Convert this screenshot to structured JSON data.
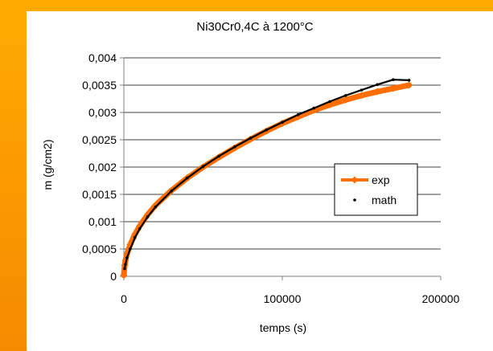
{
  "colors": {
    "frame": "#ff9f00",
    "exp": "#ff6e00",
    "math": "#000000",
    "axis": "#808080"
  },
  "chart_data": {
    "type": "line",
    "title": "Ni30Cr0,4C à 1200°C",
    "xlabel": "temps (s)",
    "ylabel": "m (g/cm2)",
    "xlim": [
      0,
      200000
    ],
    "ylim": [
      0,
      0.004
    ],
    "x_ticks": [
      0,
      100000,
      200000
    ],
    "x_tick_labels": [
      "0",
      "100000",
      "200000"
    ],
    "y_ticks": [
      0,
      0.0005,
      0.001,
      0.0015,
      0.002,
      0.0025,
      0.003,
      0.0035,
      0.004
    ],
    "y_tick_labels": [
      "0",
      "0,0005",
      "0,001",
      "0,0015",
      "0,002",
      "0,0025",
      "0,003",
      "0,0035",
      "0,004"
    ],
    "grid": {
      "horizontal": true,
      "vertical": false
    },
    "legend_position": "right",
    "series": [
      {
        "name": "exp",
        "style": "line-markers",
        "color": "#ff6e00",
        "x": [
          0,
          500,
          1000,
          2000,
          4000,
          7000,
          10000,
          15000,
          20000,
          30000,
          40000,
          50000,
          60000,
          70000,
          80000,
          90000,
          100000,
          110000,
          120000,
          130000,
          140000,
          150000,
          160000,
          170000,
          180000
        ],
        "y": [
          2e-05,
          0.0002,
          0.00029,
          0.00041,
          0.00058,
          0.00077,
          0.00092,
          0.00113,
          0.0013,
          0.00157,
          0.0018,
          0.002,
          0.00218,
          0.00235,
          0.00251,
          0.00266,
          0.0028,
          0.00292,
          0.00304,
          0.00314,
          0.00323,
          0.00331,
          0.00338,
          0.00344,
          0.0035
        ]
      },
      {
        "name": "math",
        "style": "dots",
        "color": "#000000",
        "x": [
          500,
          1000,
          2000,
          4000,
          7000,
          10000,
          15000,
          20000,
          30000,
          40000,
          50000,
          60000,
          70000,
          80000,
          90000,
          100000,
          110000,
          120000,
          130000,
          140000,
          150000,
          160000,
          170000,
          180000
        ],
        "y": [
          0.00014,
          0.00022,
          0.00034,
          0.0005,
          0.00071,
          0.00087,
          0.00109,
          0.00127,
          0.00156,
          0.0018,
          0.00201,
          0.0022,
          0.00237,
          0.00253,
          0.00268,
          0.00282,
          0.00296,
          0.00308,
          0.0032,
          0.00331,
          0.00341,
          0.00351,
          0.0036,
          0.00359
        ]
      }
    ]
  }
}
